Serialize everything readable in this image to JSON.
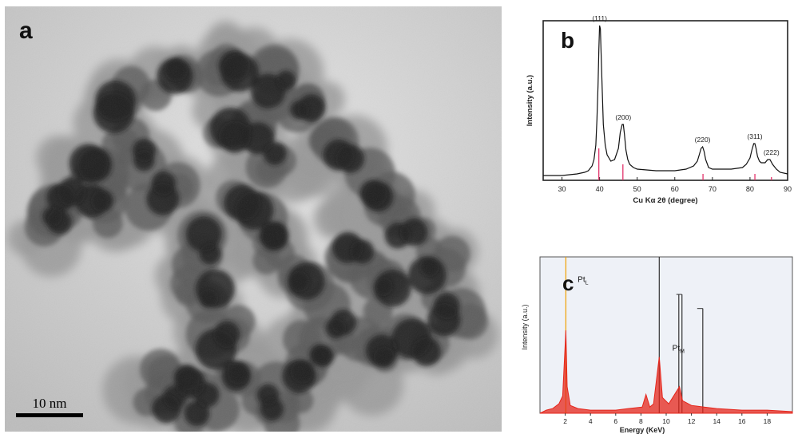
{
  "panel_a": {
    "letter": "a",
    "scale_bar_label": "10 nm"
  },
  "chart_data": [
    {
      "panel": "b",
      "type": "line",
      "xlabel": "Cu Kα 2θ (degree)",
      "ylabel": "Intensity (a.u.)",
      "xlim": [
        25,
        90
      ],
      "ylim": [
        0,
        100
      ],
      "xticks": [
        30,
        40,
        50,
        60,
        70,
        80,
        90
      ],
      "x": [
        25,
        30,
        34,
        36,
        37,
        38,
        38.5,
        39,
        39.3,
        39.6,
        39.8,
        40,
        40.2,
        40.4,
        40.7,
        41,
        41.5,
        42,
        43,
        44,
        45,
        45.5,
        46,
        46.3,
        46.6,
        47,
        47.5,
        48,
        49,
        50,
        55,
        60,
        63,
        65,
        66,
        66.5,
        67,
        67.4,
        67.8,
        68.2,
        69,
        70,
        72,
        75,
        78,
        79,
        80,
        80.5,
        81,
        81.3,
        81.6,
        82,
        82.5,
        83,
        84,
        84.7,
        85.3,
        86,
        87,
        88,
        90
      ],
      "y": [
        1,
        1,
        2,
        3,
        4,
        7,
        11,
        20,
        36,
        58,
        80,
        95,
        93,
        78,
        55,
        33,
        20,
        14,
        10,
        11,
        18,
        28,
        33,
        33,
        27,
        17,
        11,
        8,
        6,
        5,
        4,
        4,
        5,
        7,
        10,
        14,
        18,
        19,
        16,
        11,
        6,
        5,
        5,
        5,
        6,
        8,
        12,
        17,
        21,
        21,
        18,
        13,
        10,
        9,
        9,
        11,
        11,
        8,
        5,
        3,
        2
      ],
      "peaks": [
        {
          "label": "(111)",
          "x": 40,
          "y": 95
        },
        {
          "label": "(200)",
          "x": 46.3,
          "y": 33
        },
        {
          "label": "(220)",
          "x": 67.4,
          "y": 19
        },
        {
          "label": "(311)",
          "x": 81.3,
          "y": 21
        },
        {
          "label": "(222)",
          "x": 85.7,
          "y": 11
        }
      ],
      "reference_lines": [
        {
          "x": 39.8,
          "height": 20
        },
        {
          "x": 46.2,
          "height": 10
        },
        {
          "x": 67.5,
          "height": 4
        },
        {
          "x": 81.3,
          "height": 4
        },
        {
          "x": 85.7,
          "height": 2
        }
      ],
      "colors": {
        "trace": "#111111",
        "reference": "#e2336b"
      }
    },
    {
      "panel": "c",
      "type": "bar",
      "xlabel": "Energy (KeV)",
      "ylabel": "Intensity (a.u.)",
      "xlim": [
        0,
        20
      ],
      "ylim": [
        0,
        100
      ],
      "xticks": [
        2,
        4,
        6,
        8,
        10,
        12,
        14,
        16,
        18
      ],
      "peak_labels": [
        {
          "label": "Pt",
          "subscript": "L",
          "x": 2.1,
          "y": 84
        },
        {
          "label": "Pt",
          "subscript": "M",
          "x": 9.6,
          "y": 40
        }
      ],
      "spectrum": [
        {
          "x": 0.5,
          "y": 2
        },
        {
          "x": 1.0,
          "y": 3
        },
        {
          "x": 1.5,
          "y": 6
        },
        {
          "x": 1.8,
          "y": 11
        },
        {
          "x": 2.05,
          "y": 53
        },
        {
          "x": 2.15,
          "y": 17
        },
        {
          "x": 2.4,
          "y": 5
        },
        {
          "x": 3.0,
          "y": 3
        },
        {
          "x": 4.0,
          "y": 2
        },
        {
          "x": 5.0,
          "y": 2
        },
        {
          "x": 6.0,
          "y": 2
        },
        {
          "x": 7.0,
          "y": 3
        },
        {
          "x": 8.1,
          "y": 4
        },
        {
          "x": 8.4,
          "y": 12
        },
        {
          "x": 8.7,
          "y": 4
        },
        {
          "x": 9.0,
          "y": 6
        },
        {
          "x": 9.45,
          "y": 36
        },
        {
          "x": 9.7,
          "y": 10
        },
        {
          "x": 10.2,
          "y": 6
        },
        {
          "x": 11.05,
          "y": 17
        },
        {
          "x": 11.3,
          "y": 8
        },
        {
          "x": 12.0,
          "y": 5
        },
        {
          "x": 13.0,
          "y": 4
        },
        {
          "x": 14.0,
          "y": 3
        },
        {
          "x": 16.0,
          "y": 2
        },
        {
          "x": 18.0,
          "y": 2
        },
        {
          "x": 20.0,
          "y": 1
        }
      ],
      "marker_lines": [
        {
          "x": 2.05,
          "height": 100,
          "color": "#f0a000"
        },
        {
          "x": 9.45,
          "height": 100,
          "color": "#333333"
        },
        {
          "x": 11.0,
          "height": 76,
          "color": "#333333"
        },
        {
          "x": 11.25,
          "height": 76,
          "color": "#333333"
        },
        {
          "x": 12.9,
          "height": 67,
          "color": "#333333"
        }
      ],
      "colors": {
        "spectrum": "#e5251b",
        "background": "#eef1f7"
      }
    }
  ],
  "panel_b": {
    "letter": "b"
  },
  "panel_c": {
    "letter": "c"
  }
}
